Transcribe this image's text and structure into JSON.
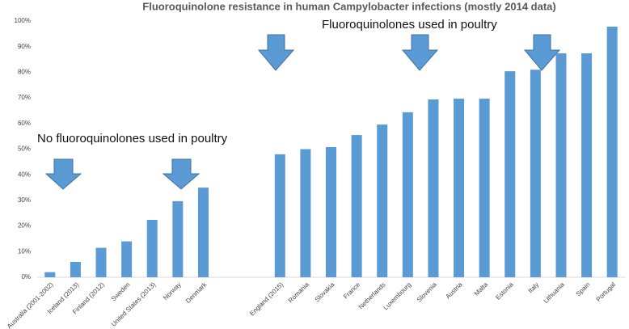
{
  "chart_data": {
    "type": "bar",
    "title": "Fluoroquinolone resistance in human Campylobacter infections (mostly 2014 data)",
    "annotations": [
      "No fluoroquinolones used in poultry",
      "Fluoroquinolones used in poultry"
    ],
    "categories": [
      "Australia (2001-2002)",
      "Iceland (2013)",
      "Finland (2012)",
      "Sweden",
      "United States (2013)",
      "Norway",
      "Denmark",
      null,
      null,
      "England (2015)",
      "Romania",
      "Slovakia",
      "France",
      "Netherlands",
      "Luxembourg",
      "Slovenia",
      "Austria",
      "Malta",
      "Estonia",
      "Italy",
      "Lithuania",
      "Spain",
      "Portugal"
    ],
    "values": [
      2,
      6,
      11.5,
      14,
      22.4,
      29.7,
      35,
      null,
      null,
      48,
      50,
      50.8,
      55.5,
      59.6,
      64.4,
      69.4,
      69.7,
      69.7,
      80.4,
      81,
      87.4,
      87.4,
      97.8
    ],
    "color": "#5b9bd5",
    "ylim": [
      0,
      100
    ],
    "yticks": [
      {
        "value": 0,
        "label": "0%"
      },
      {
        "value": 10,
        "label": "10%"
      },
      {
        "value": 20,
        "label": "20%"
      },
      {
        "value": 30,
        "label": "30%"
      },
      {
        "value": 40,
        "label": "40%"
      },
      {
        "value": 50,
        "label": "50%"
      },
      {
        "value": 60,
        "label": "60%"
      },
      {
        "value": 70,
        "label": "70%"
      },
      {
        "value": 80,
        "label": "80%"
      },
      {
        "value": 90,
        "label": "90%"
      },
      {
        "value": 100,
        "label": "100%"
      }
    ],
    "grid": false
  }
}
